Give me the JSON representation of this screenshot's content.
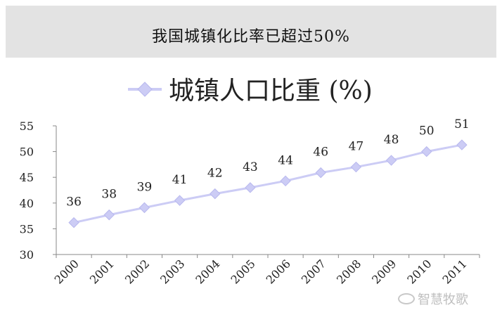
{
  "header": {
    "title": "我国城镇化比率已超过50%"
  },
  "watermark": {
    "text": "智慧牧歌",
    "icon": "wechat-icon"
  },
  "chart_data": {
    "type": "line",
    "title": "",
    "xlabel": "",
    "ylabel": "",
    "ylim": [
      30,
      55
    ],
    "yticks": [
      30,
      35,
      40,
      45,
      50,
      55
    ],
    "categories": [
      "2000",
      "2001",
      "2002",
      "2003",
      "2004",
      "2005",
      "2006",
      "2007",
      "2008",
      "2009",
      "2010",
      "2011"
    ],
    "series": [
      {
        "name": "城镇人口比重 (%)",
        "color": "#ccccf5",
        "values": [
          36.2,
          37.7,
          39.1,
          40.5,
          41.8,
          43.0,
          44.3,
          45.9,
          47.0,
          48.3,
          50.0,
          51.3
        ],
        "labels": [
          "36",
          "38",
          "39",
          "41",
          "42",
          "43",
          "44",
          "46",
          "47",
          "48",
          "50",
          "51"
        ]
      }
    ],
    "legend": "top-center",
    "grid": false
  }
}
